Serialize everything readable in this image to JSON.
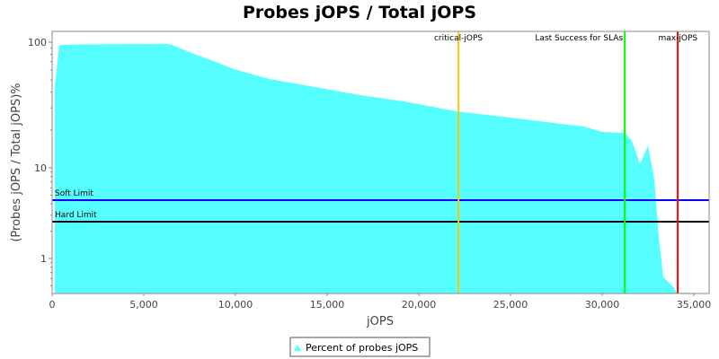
{
  "chart_data": {
    "type": "area",
    "title": "Probes jOPS / Total jOPS",
    "xlabel": "jOPS",
    "ylabel": "(Probes jOPS / Total jOPS)%",
    "xlim": [
      0,
      35830
    ],
    "ylim": [
      0.41,
      122
    ],
    "yscale": "log",
    "x_ticks": [
      0,
      5000,
      10000,
      15000,
      20000,
      25000,
      30000,
      35000
    ],
    "x_tick_labels": [
      "0",
      "5,000",
      "10,000",
      "15,000",
      "20,000",
      "25,000",
      "30,000",
      "35,000"
    ],
    "y_ticks": [
      1,
      10,
      100
    ],
    "y_tick_labels": [
      "1",
      "10",
      "100"
    ],
    "grid": false,
    "legend_position": "bottom",
    "series": [
      {
        "name": "Percent of probes jOPS",
        "color": "#55FFFF",
        "x": [
          150,
          390,
          1570,
          6230,
          6470,
          7700,
          8680,
          9900,
          11860,
          14310,
          16760,
          19220,
          22160,
          24610,
          26570,
          29020,
          30000,
          30980,
          31230,
          31620,
          32060,
          32500,
          32840,
          33090,
          33330,
          33820,
          34120,
          34410,
          35830
        ],
        "y": [
          45,
          95,
          96,
          97,
          96,
          81,
          72,
          61,
          51,
          44,
          38,
          33.7,
          28,
          25.5,
          23.5,
          21.3,
          19.3,
          19,
          19,
          16.4,
          10.7,
          15.1,
          7.4,
          1.69,
          0.62,
          0.5,
          0.41,
          0.42,
          0.41
        ]
      }
    ],
    "horizontal_markers": [
      {
        "label": "Soft Limit",
        "value": 4.4,
        "color": "#0000FF"
      },
      {
        "label": "Hard Limit",
        "value": 2.55,
        "color": "#000000"
      }
    ],
    "vertical_markers": [
      {
        "label": "critical-jOPS",
        "value": 22160,
        "color": "#FFC800"
      },
      {
        "label": "Last Success for SLAs",
        "value": 31230,
        "color": "#00FF00"
      },
      {
        "label": "max-jOPS",
        "value": 34120,
        "color": "#FF0000"
      }
    ]
  }
}
